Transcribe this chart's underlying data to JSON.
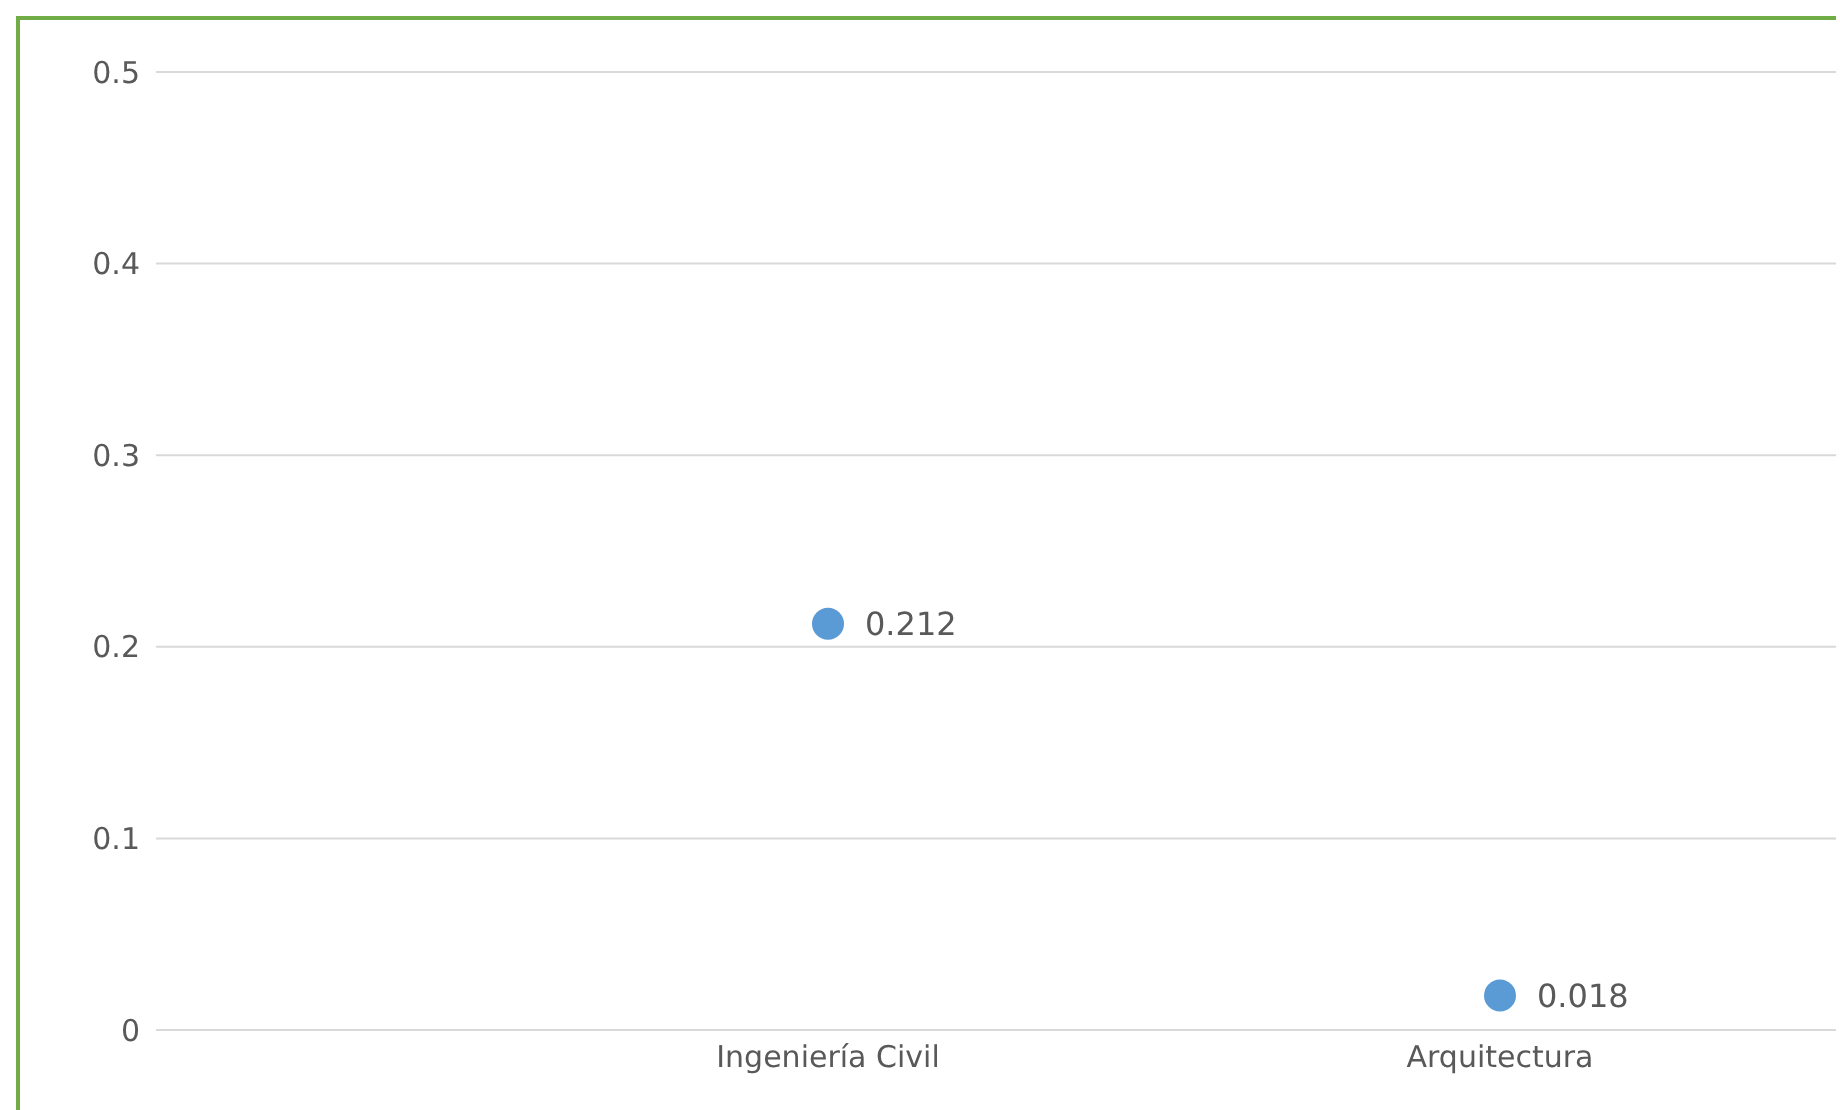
{
  "chart_data": {
    "type": "scatter",
    "categories": [
      "Ingeniería Civil",
      "Arquitectura"
    ],
    "series": [
      {
        "color": "#5b9bd5",
        "values": [
          0.212,
          0.018
        ]
      }
    ],
    "ylim": [
      0,
      0.5
    ],
    "yticks": [
      0,
      0.1,
      0.2,
      0.3,
      0.4,
      0.5
    ],
    "grid": "y",
    "marker": "circle",
    "data_labels": true,
    "legend": false
  }
}
